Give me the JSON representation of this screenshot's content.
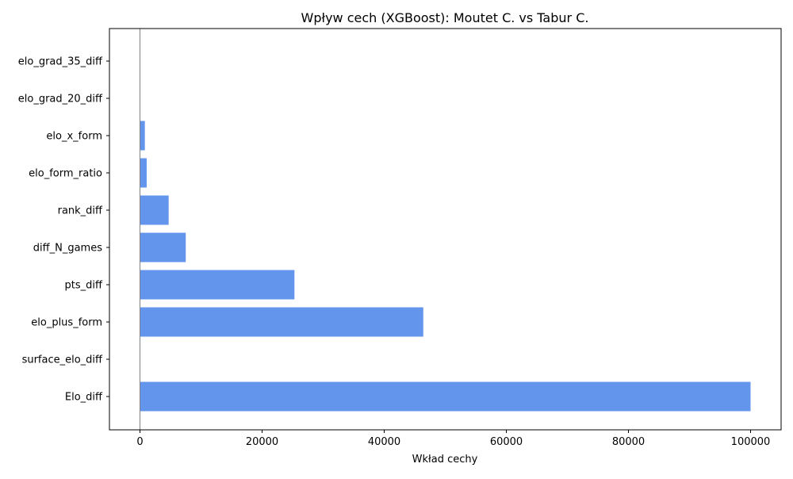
{
  "chart_data": {
    "type": "bar",
    "orientation": "horizontal",
    "title": "Wpływ cech (XGBoost): Moutet C. vs Tabur C.",
    "xlabel": "Wkład cechy",
    "ylabel": "",
    "categories": [
      "Elo_diff",
      "surface_elo_diff",
      "elo_plus_form",
      "pts_diff",
      "diff_N_games",
      "rank_diff",
      "elo_form_ratio",
      "elo_x_form",
      "elo_grad_20_diff",
      "elo_grad_35_diff"
    ],
    "values": [
      100000,
      0,
      46400,
      25300,
      7500,
      4700,
      1100,
      800,
      0,
      0
    ],
    "xlim": [
      -5000,
      105000
    ],
    "xticks": [
      0,
      20000,
      40000,
      60000,
      80000,
      100000
    ],
    "xtick_labels": [
      "0",
      "20000",
      "40000",
      "60000",
      "80000",
      "100000"
    ],
    "bar_color": "#6495ed",
    "zero_line_color": "#808080",
    "grid": false,
    "legend": "none"
  }
}
